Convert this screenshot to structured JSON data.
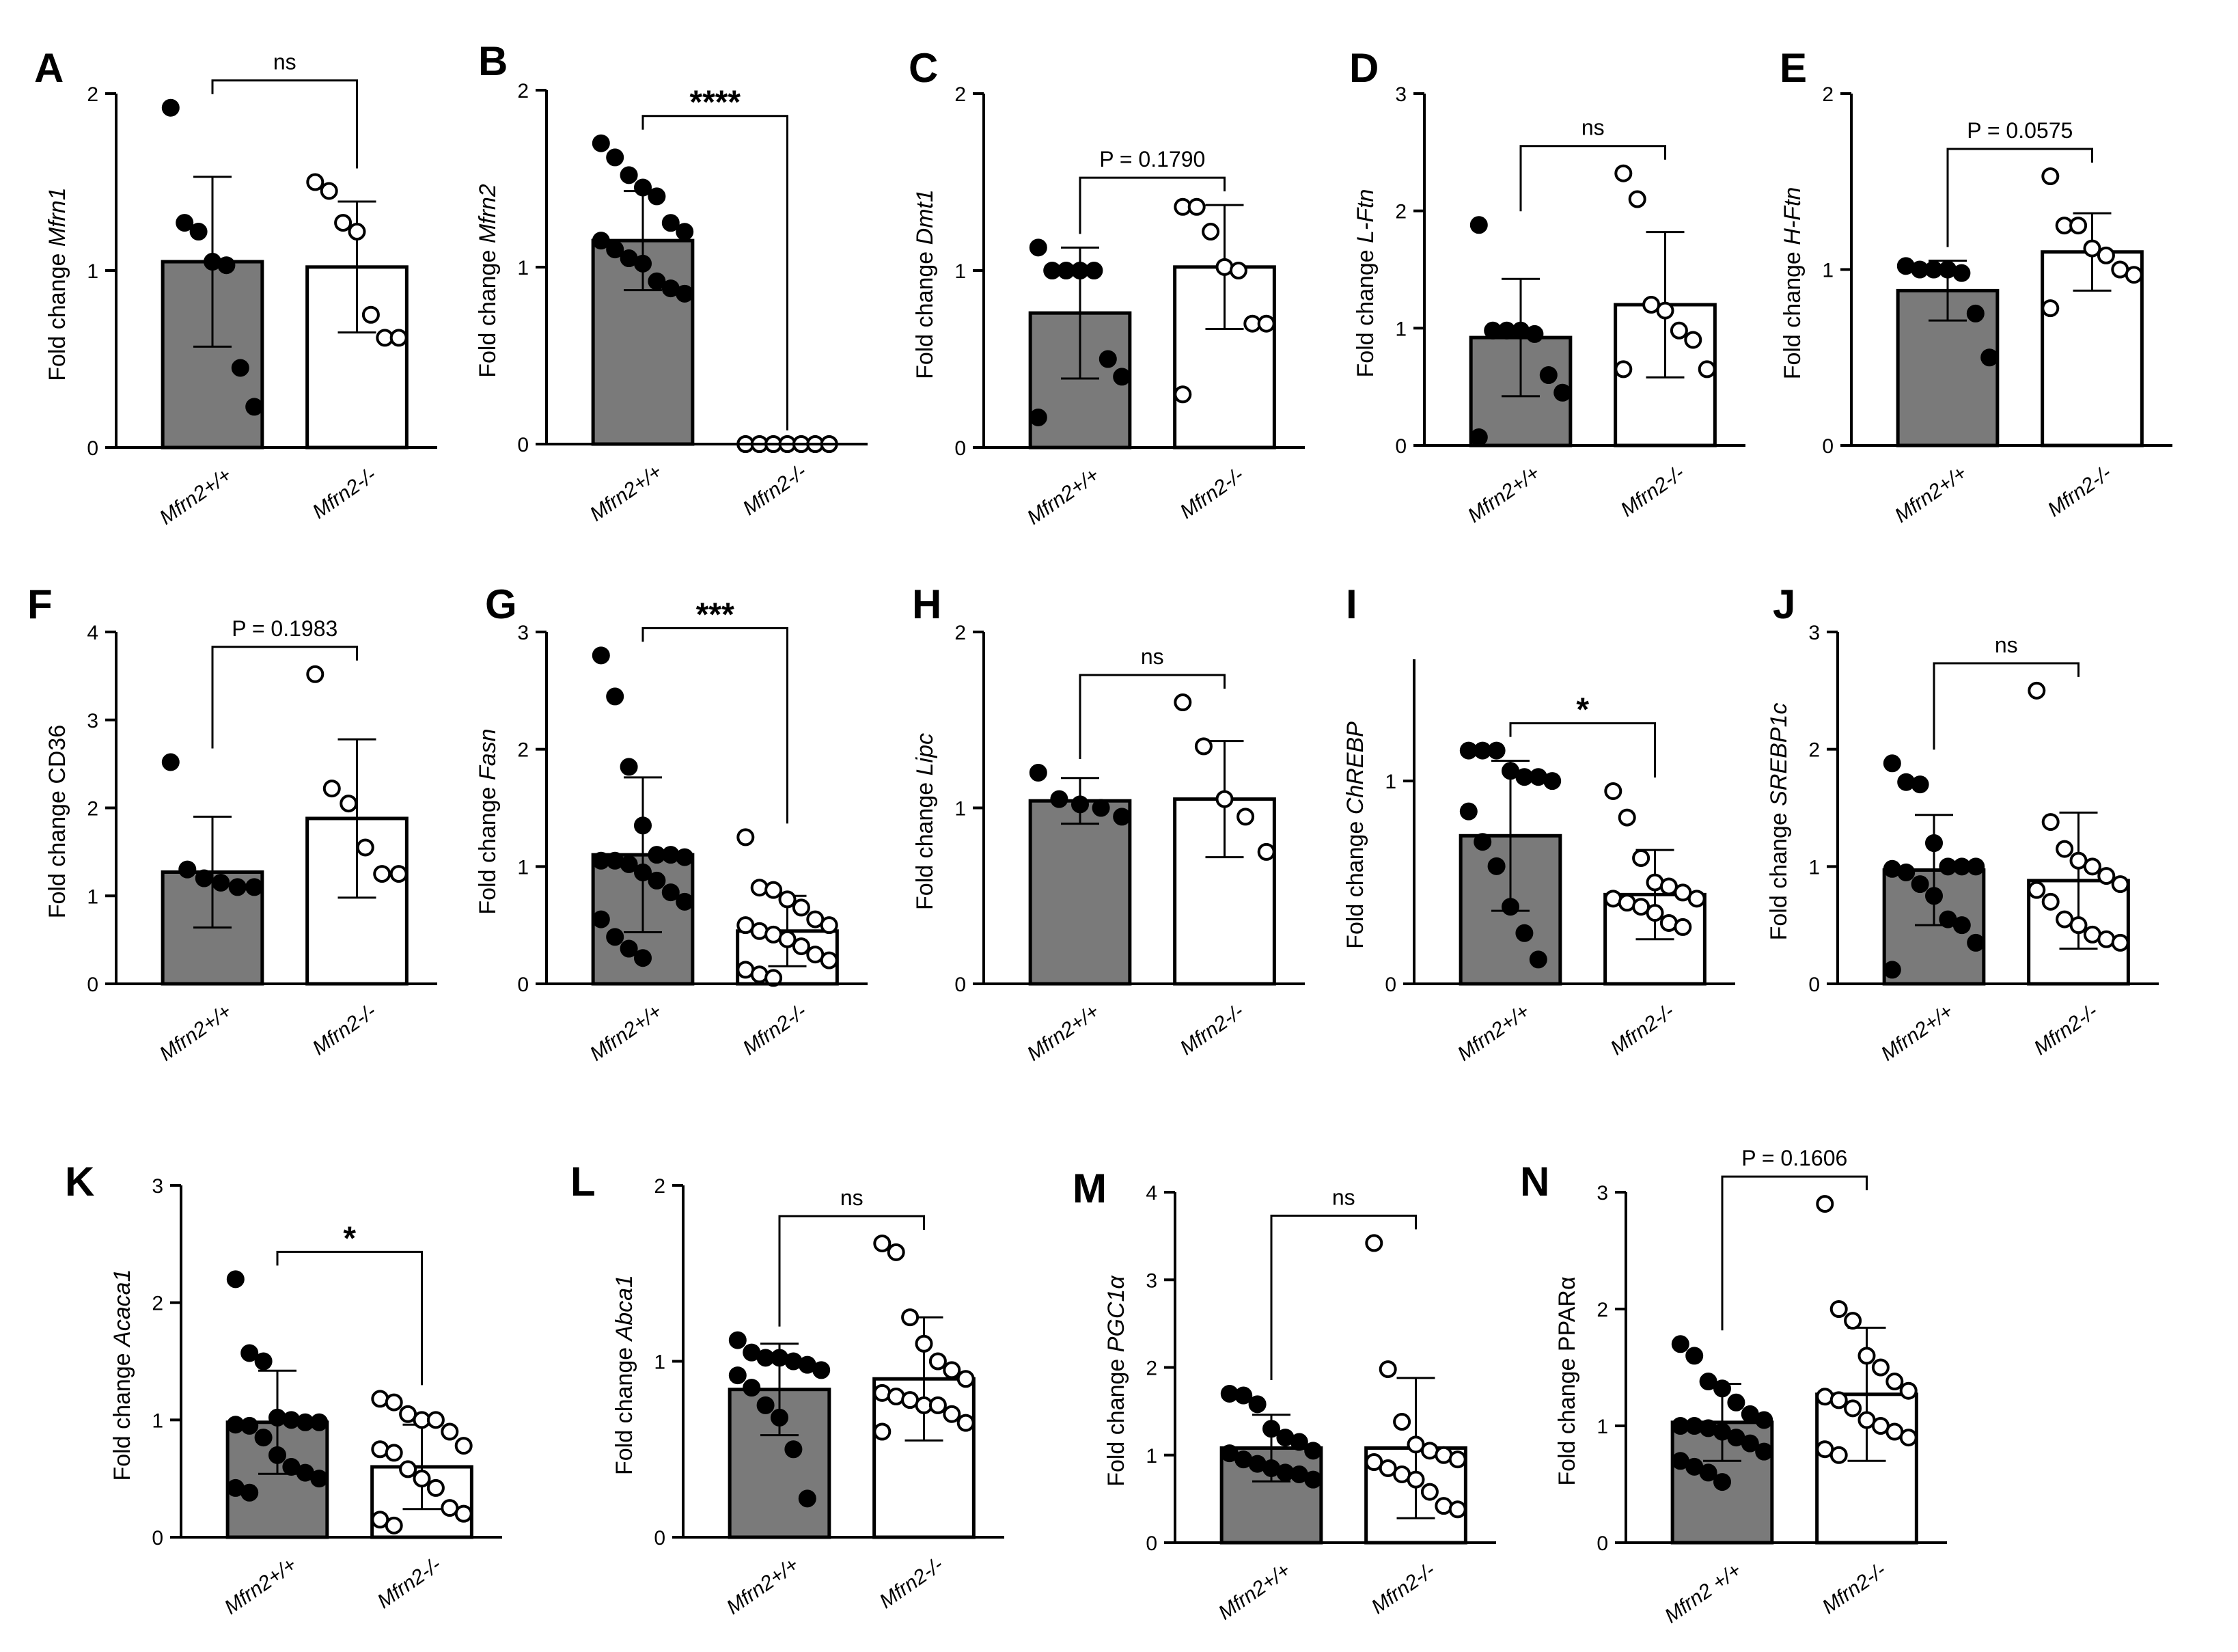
{
  "figure": {
    "axis_label_prefix": "Fold change",
    "colors": {
      "wt_bar": "#7a7a7a",
      "ko_bar": "#ffffff",
      "axis": "#000000",
      "wt_point": "#000000",
      "ko_point": "#ffffff"
    }
  },
  "chart_data": [
    {
      "type": "bar",
      "panel": "A",
      "title": "",
      "ylabel_prefix": "Fold change",
      "ylabel_gene": "Mfrn1",
      "gene_italic": true,
      "categories": [
        "Mfrn2+/+",
        "Mfrn2-/-"
      ],
      "ylim": [
        0,
        2
      ],
      "yticks": [
        "0",
        "1",
        "2"
      ],
      "series": [
        {
          "name": "Mfrn2+/+",
          "mean": 1.05,
          "sd": 0.48,
          "points": [
            1.92,
            1.27,
            1.22,
            1.05,
            1.03,
            0.45,
            0.23
          ]
        },
        {
          "name": "Mfrn2-/-",
          "mean": 1.02,
          "sd": 0.37,
          "points": [
            1.5,
            1.45,
            1.27,
            1.22,
            0.75,
            0.62,
            0.62
          ]
        }
      ],
      "significance": {
        "label": "ns"
      }
    },
    {
      "type": "bar",
      "panel": "B",
      "title": "",
      "ylabel_prefix": "Fold change",
      "ylabel_gene": "Mfrn2",
      "gene_italic": true,
      "categories": [
        "Mfrn2+/+",
        "Mfrn2-/-"
      ],
      "ylim": [
        0,
        2
      ],
      "yticks": [
        "0",
        "1",
        "2"
      ],
      "series": [
        {
          "name": "Mfrn2+/+",
          "mean": 1.15,
          "sd": 0.28,
          "points": [
            1.7,
            1.62,
            1.52,
            1.45,
            1.4,
            1.25,
            1.2,
            1.15,
            1.1,
            1.05,
            1.02,
            0.92,
            0.88,
            0.85
          ]
        },
        {
          "name": "Mfrn2-/-",
          "mean": 0.0,
          "sd": 0.0,
          "points": [
            0,
            0,
            0,
            0,
            0,
            0,
            0,
            0,
            0,
            0,
            0,
            0,
            0,
            0
          ]
        }
      ],
      "significance": {
        "label": "****"
      }
    },
    {
      "type": "bar",
      "panel": "C",
      "title": "",
      "ylabel_prefix": "Fold change",
      "ylabel_gene": "Dmt1",
      "gene_italic": true,
      "categories": [
        "Mfrn2+/+",
        "Mfrn2-/-"
      ],
      "ylim": [
        0,
        2
      ],
      "yticks": [
        "0",
        "1",
        "2"
      ],
      "series": [
        {
          "name": "Mfrn2+/+",
          "mean": 0.76,
          "sd": 0.37,
          "points": [
            1.13,
            1.0,
            1.0,
            1.0,
            1.0,
            0.5,
            0.4,
            0.17
          ]
        },
        {
          "name": "Mfrn2-/-",
          "mean": 1.02,
          "sd": 0.35,
          "points": [
            1.36,
            1.36,
            1.22,
            1.02,
            1.0,
            0.7,
            0.7,
            0.3
          ]
        }
      ],
      "significance": {
        "label": "P = 0.1790"
      }
    },
    {
      "type": "bar",
      "panel": "D",
      "title": "",
      "ylabel_prefix": "Fold change",
      "ylabel_gene": "L-Ftn",
      "gene_italic": true,
      "categories": [
        "Mfrn2+/+",
        "Mfrn2-/-"
      ],
      "ylim": [
        0,
        3
      ],
      "yticks": [
        "0",
        "1",
        "2",
        "3"
      ],
      "series": [
        {
          "name": "Mfrn2+/+",
          "mean": 0.92,
          "sd": 0.5,
          "points": [
            1.88,
            0.98,
            0.98,
            0.98,
            0.95,
            0.6,
            0.45,
            0.07
          ]
        },
        {
          "name": "Mfrn2-/-",
          "mean": 1.2,
          "sd": 0.62,
          "points": [
            2.32,
            2.1,
            1.2,
            1.15,
            0.98,
            0.9,
            0.65,
            0.65
          ]
        }
      ],
      "significance": {
        "label": "ns"
      }
    },
    {
      "type": "bar",
      "panel": "E",
      "title": "",
      "ylabel_prefix": "Fold change",
      "ylabel_gene": "H-Ftn",
      "gene_italic": true,
      "categories": [
        "Mfrn2+/+",
        "Mfrn2-/-"
      ],
      "ylim": [
        0,
        2
      ],
      "yticks": [
        "0",
        "1",
        "2"
      ],
      "series": [
        {
          "name": "Mfrn2+/+",
          "mean": 0.88,
          "sd": 0.17,
          "points": [
            1.02,
            1.0,
            1.0,
            1.0,
            0.98,
            0.75,
            0.5
          ]
        },
        {
          "name": "Mfrn2-/-",
          "mean": 1.1,
          "sd": 0.22,
          "points": [
            1.53,
            1.25,
            1.25,
            1.12,
            1.08,
            1.0,
            0.97,
            0.78
          ]
        }
      ],
      "significance": {
        "label": "P = 0.0575"
      }
    },
    {
      "type": "bar",
      "panel": "F",
      "title": "",
      "ylabel_prefix": "Fold change",
      "ylabel_gene": "CD36",
      "gene_italic": false,
      "categories": [
        "Mfrn2+/+",
        "Mfrn2-/-"
      ],
      "ylim": [
        0,
        4
      ],
      "yticks": [
        "0",
        "1",
        "2",
        "3",
        "4"
      ],
      "series": [
        {
          "name": "Mfrn2+/+",
          "mean": 1.27,
          "sd": 0.63,
          "points": [
            2.52,
            1.3,
            1.2,
            1.15,
            1.1,
            1.1
          ]
        },
        {
          "name": "Mfrn2-/-",
          "mean": 1.88,
          "sd": 0.9,
          "points": [
            3.52,
            2.22,
            2.05,
            1.55,
            1.25,
            1.25
          ]
        }
      ],
      "significance": {
        "label": "P = 0.1983"
      }
    },
    {
      "type": "bar",
      "panel": "G",
      "title": "",
      "ylabel_prefix": "Fold change",
      "ylabel_gene": "Fasn",
      "gene_italic": true,
      "categories": [
        "Mfrn2+/+",
        "Mfrn2-/-"
      ],
      "ylim": [
        0,
        3
      ],
      "yticks": [
        "0",
        "1",
        "2",
        "3"
      ],
      "series": [
        {
          "name": "Mfrn2+/+",
          "mean": 1.1,
          "sd": 0.66,
          "points": [
            2.8,
            2.45,
            1.85,
            1.35,
            1.1,
            1.1,
            1.08,
            1.05,
            1.05,
            1.02,
            0.95,
            0.88,
            0.78,
            0.7,
            0.55,
            0.4,
            0.3,
            0.22
          ]
        },
        {
          "name": "Mfrn2-/-",
          "mean": 0.45,
          "sd": 0.3,
          "points": [
            1.25,
            0.82,
            0.8,
            0.72,
            0.65,
            0.55,
            0.5,
            0.5,
            0.45,
            0.42,
            0.38,
            0.32,
            0.25,
            0.2,
            0.12,
            0.08,
            0.05
          ]
        }
      ],
      "significance": {
        "label": "***"
      }
    },
    {
      "type": "bar",
      "panel": "H",
      "title": "",
      "ylabel_prefix": "Fold change",
      "ylabel_gene": "Lipc",
      "gene_italic": true,
      "categories": [
        "Mfrn2+/+",
        "Mfrn2-/-"
      ],
      "ylim": [
        0,
        2
      ],
      "yticks": [
        "0",
        "1",
        "2"
      ],
      "series": [
        {
          "name": "Mfrn2+/+",
          "mean": 1.04,
          "sd": 0.13,
          "points": [
            1.2,
            1.05,
            1.02,
            1.0,
            0.95
          ]
        },
        {
          "name": "Mfrn2-/-",
          "mean": 1.05,
          "sd": 0.33,
          "points": [
            1.6,
            1.35,
            1.05,
            0.95,
            0.75
          ]
        }
      ],
      "significance": {
        "label": "ns"
      }
    },
    {
      "type": "bar",
      "panel": "I",
      "title": "",
      "ylabel_prefix": "Fold change",
      "ylabel_gene": "ChREBP",
      "gene_italic": true,
      "categories": [
        "Mfrn2+/+",
        "Mfrn2-/-"
      ],
      "ylim": [
        0,
        1.6
      ],
      "yticks": [
        "0",
        "1"
      ],
      "series": [
        {
          "name": "Mfrn2+/+",
          "mean": 0.73,
          "sd": 0.37,
          "points": [
            1.15,
            1.15,
            1.15,
            1.05,
            1.02,
            1.02,
            1.0,
            0.85,
            0.7,
            0.58,
            0.38,
            0.25,
            0.12
          ]
        },
        {
          "name": "Mfrn2-/-",
          "mean": 0.44,
          "sd": 0.22,
          "points": [
            0.95,
            0.82,
            0.62,
            0.5,
            0.48,
            0.45,
            0.42,
            0.42,
            0.4,
            0.38,
            0.35,
            0.3,
            0.28
          ]
        }
      ],
      "significance": {
        "label": "*"
      }
    },
    {
      "type": "bar",
      "panel": "J",
      "title": "",
      "ylabel_prefix": "Fold change",
      "ylabel_gene": "SREBP1c",
      "gene_italic": true,
      "categories": [
        "Mfrn2+/+",
        "Mfrn2-/-"
      ],
      "ylim": [
        0,
        3
      ],
      "yticks": [
        "0",
        "1",
        "2",
        "3"
      ],
      "series": [
        {
          "name": "Mfrn2+/+",
          "mean": 0.97,
          "sd": 0.47,
          "points": [
            1.88,
            1.72,
            1.7,
            1.2,
            1.0,
            1.0,
            1.0,
            0.98,
            0.95,
            0.85,
            0.75,
            0.55,
            0.5,
            0.35,
            0.12
          ]
        },
        {
          "name": "Mfrn2-/-",
          "mean": 0.88,
          "sd": 0.58,
          "points": [
            2.5,
            1.38,
            1.15,
            1.05,
            1.0,
            0.92,
            0.85,
            0.8,
            0.7,
            0.55,
            0.5,
            0.42,
            0.38,
            0.35
          ]
        }
      ],
      "significance": {
        "label": "ns"
      }
    },
    {
      "type": "bar",
      "panel": "K",
      "title": "",
      "ylabel_prefix": "Fold change",
      "ylabel_gene": "Acaca1",
      "gene_italic": true,
      "categories": [
        "Mfrn2+/+",
        "Mfrn2-/-"
      ],
      "ylim": [
        0,
        3
      ],
      "yticks": [
        "0",
        "1",
        "2",
        "3"
      ],
      "series": [
        {
          "name": "Mfrn2+/+",
          "mean": 0.98,
          "sd": 0.44,
          "points": [
            2.2,
            1.57,
            1.5,
            1.02,
            1.0,
            0.98,
            0.98,
            0.96,
            0.95,
            0.85,
            0.7,
            0.6,
            0.55,
            0.5,
            0.42,
            0.38
          ]
        },
        {
          "name": "Mfrn2-/-",
          "mean": 0.6,
          "sd": 0.36,
          "points": [
            1.18,
            1.15,
            1.05,
            1.0,
            1.0,
            0.9,
            0.78,
            0.75,
            0.72,
            0.58,
            0.5,
            0.42,
            0.25,
            0.2,
            0.15,
            0.1
          ]
        }
      ],
      "significance": {
        "label": "*"
      }
    },
    {
      "type": "bar",
      "panel": "L",
      "title": "",
      "ylabel_prefix": "Fold change",
      "ylabel_gene": "Abca1",
      "gene_italic": true,
      "categories": [
        "Mfrn2+/+",
        "Mfrn2-/-"
      ],
      "ylim": [
        0,
        2
      ],
      "yticks": [
        "0",
        "1",
        "2"
      ],
      "series": [
        {
          "name": "Mfrn2+/+",
          "mean": 0.84,
          "sd": 0.26,
          "points": [
            1.12,
            1.05,
            1.02,
            1.02,
            1.0,
            0.98,
            0.95,
            0.92,
            0.85,
            0.75,
            0.68,
            0.5,
            0.22
          ]
        },
        {
          "name": "Mfrn2-/-",
          "mean": 0.9,
          "sd": 0.35,
          "points": [
            1.67,
            1.62,
            1.25,
            1.1,
            1.0,
            0.95,
            0.9,
            0.82,
            0.8,
            0.78,
            0.75,
            0.75,
            0.7,
            0.65,
            0.6
          ]
        }
      ],
      "significance": {
        "label": "ns"
      }
    },
    {
      "type": "bar",
      "panel": "M",
      "title": "",
      "ylabel_prefix": "Fold change",
      "ylabel_gene": "PGC1α",
      "gene_italic": true,
      "categories": [
        "Mfrn2+/+",
        "Mfrn2-/-"
      ],
      "ylim": [
        0,
        4
      ],
      "yticks": [
        "0",
        "1",
        "2",
        "3",
        "4"
      ],
      "series": [
        {
          "name": "Mfrn2+/+",
          "mean": 1.08,
          "sd": 0.38,
          "points": [
            1.7,
            1.68,
            1.58,
            1.3,
            1.2,
            1.15,
            1.05,
            1.02,
            0.95,
            0.9,
            0.85,
            0.8,
            0.78,
            0.72
          ]
        },
        {
          "name": "Mfrn2-/-",
          "mean": 1.08,
          "sd": 0.8,
          "points": [
            3.42,
            1.98,
            1.38,
            1.12,
            1.05,
            1.0,
            0.95,
            0.92,
            0.85,
            0.78,
            0.72,
            0.58,
            0.42,
            0.38
          ]
        }
      ],
      "significance": {
        "label": "ns"
      }
    },
    {
      "type": "bar",
      "panel": "N",
      "title": "",
      "ylabel_prefix": "Fold change",
      "ylabel_gene": "PPARα",
      "gene_italic": false,
      "categories": [
        "Mfrn2 +/+",
        "Mfrn2-/-"
      ],
      "ylim": [
        0,
        3
      ],
      "yticks": [
        "0",
        "1",
        "2",
        "3"
      ],
      "series": [
        {
          "name": "Mfrn2 +/+",
          "mean": 1.03,
          "sd": 0.33,
          "points": [
            1.7,
            1.6,
            1.38,
            1.32,
            1.2,
            1.1,
            1.05,
            1.0,
            1.0,
            0.98,
            0.95,
            0.9,
            0.85,
            0.78,
            0.7,
            0.65,
            0.6,
            0.52
          ]
        },
        {
          "name": "Mfrn2-/-",
          "mean": 1.27,
          "sd": 0.57,
          "points": [
            2.9,
            2.0,
            1.9,
            1.6,
            1.5,
            1.38,
            1.3,
            1.25,
            1.22,
            1.15,
            1.05,
            1.0,
            0.95,
            0.9,
            0.8,
            0.75
          ]
        }
      ],
      "significance": {
        "label": "P = 0.1606"
      }
    }
  ]
}
